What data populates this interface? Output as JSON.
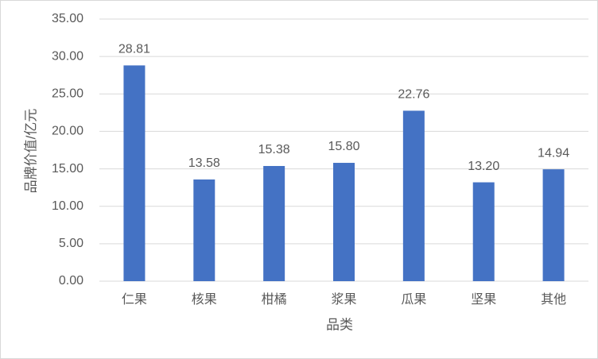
{
  "chart_data": {
    "type": "bar",
    "x_label": "品类",
    "y_label": "品牌价值/亿元",
    "categories": [
      "仁果",
      "核果",
      "柑橘",
      "浆果",
      "瓜果",
      "坚果",
      "其他"
    ],
    "values": [
      28.81,
      13.58,
      15.38,
      15.8,
      22.76,
      13.2,
      14.94
    ],
    "value_labels": [
      "28.81",
      "13.58",
      "15.38",
      "15.80",
      "22.76",
      "13.20",
      "14.94"
    ],
    "color": "#4472c4",
    "ylim": [
      0,
      35
    ],
    "yticks": [
      {
        "value": 0,
        "label": "0.00"
      },
      {
        "value": 5,
        "label": "5.00"
      },
      {
        "value": 10,
        "label": "10.00"
      },
      {
        "value": 15,
        "label": "15.00"
      },
      {
        "value": 20,
        "label": "20.00"
      },
      {
        "value": 25,
        "label": "25.00"
      },
      {
        "value": 30,
        "label": "30.00"
      },
      {
        "value": 35,
        "label": "35.00"
      }
    ],
    "grid": true
  }
}
